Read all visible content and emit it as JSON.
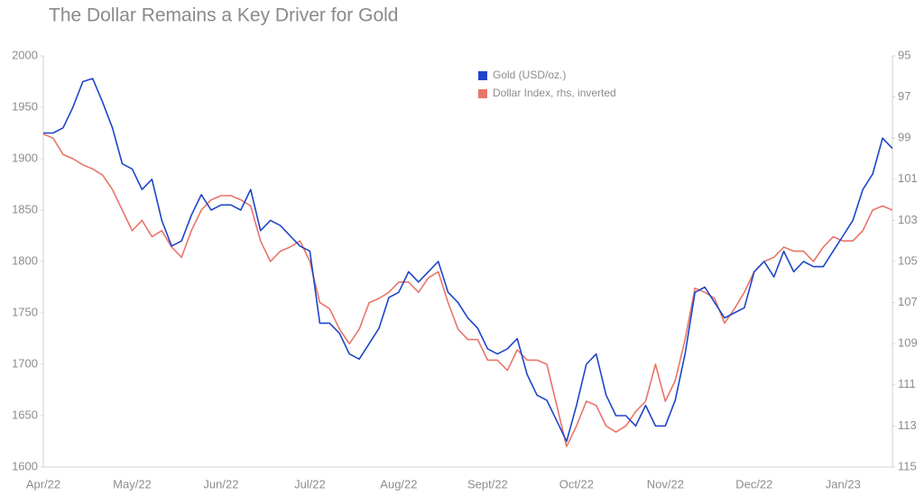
{
  "chart_data": {
    "type": "line",
    "title": "The Dollar Remains a Key Driver for Gold",
    "categories": [
      "Apr/22",
      null,
      null,
      null,
      null,
      null,
      null,
      null,
      null,
      "May/22",
      null,
      null,
      null,
      null,
      null,
      null,
      null,
      null,
      "Jun/22",
      null,
      null,
      null,
      null,
      null,
      null,
      null,
      null,
      "Jul/22",
      null,
      null,
      null,
      null,
      null,
      null,
      null,
      null,
      "Aug/22",
      null,
      null,
      null,
      null,
      null,
      null,
      null,
      null,
      "Sept/22",
      null,
      null,
      null,
      null,
      null,
      null,
      null,
      null,
      "Oct/22",
      null,
      null,
      null,
      null,
      null,
      null,
      null,
      null,
      "Nov/22",
      null,
      null,
      null,
      null,
      null,
      null,
      null,
      null,
      "Dec/22",
      null,
      null,
      null,
      null,
      null,
      null,
      null,
      null,
      "Jan/23",
      null,
      null,
      null,
      null,
      null
    ],
    "series": [
      {
        "name": "Gold (USD/oz.)",
        "color": "#1f45c8",
        "axis": "y",
        "values": [
          1925,
          1925,
          1930,
          1950,
          1975,
          1978,
          1955,
          1930,
          1895,
          1890,
          1870,
          1880,
          1840,
          1815,
          1820,
          1845,
          1865,
          1850,
          1855,
          1855,
          1850,
          1870,
          1830,
          1840,
          1835,
          1825,
          1815,
          1810,
          1740,
          1740,
          1730,
          1710,
          1705,
          1720,
          1735,
          1765,
          1770,
          1790,
          1780,
          1790,
          1800,
          1770,
          1760,
          1745,
          1735,
          1715,
          1710,
          1715,
          1725,
          1690,
          1670,
          1665,
          1645,
          1625,
          1660,
          1700,
          1710,
          1670,
          1650,
          1650,
          1640,
          1660,
          1640,
          1640,
          1665,
          1710,
          1770,
          1775,
          1760,
          1745,
          1750,
          1755,
          1790,
          1800,
          1785,
          1810,
          1790,
          1800,
          1795,
          1795,
          1810,
          1825,
          1840,
          1870,
          1885,
          1920,
          1910
        ]
      },
      {
        "name": "Dollar Index, rhs, inverted",
        "color": "#e8756a",
        "axis": "y2",
        "values": [
          98.8,
          99.0,
          99.8,
          100.0,
          100.3,
          100.5,
          100.8,
          101.5,
          102.5,
          103.5,
          103.0,
          103.8,
          103.5,
          104.3,
          104.8,
          103.5,
          102.5,
          102.0,
          101.8,
          101.8,
          102.0,
          102.3,
          104.0,
          105.0,
          104.5,
          104.3,
          104.0,
          105.0,
          107.0,
          107.3,
          108.3,
          109.0,
          108.3,
          107.0,
          106.8,
          106.5,
          106.0,
          106.0,
          106.5,
          105.8,
          105.5,
          107.0,
          108.3,
          108.8,
          108.8,
          109.8,
          109.8,
          110.3,
          109.3,
          109.8,
          109.8,
          110.0,
          112.0,
          114.0,
          113.0,
          111.8,
          112.0,
          113.0,
          113.3,
          113.0,
          112.3,
          111.8,
          110.0,
          111.8,
          110.8,
          108.8,
          106.3,
          106.5,
          106.8,
          108.0,
          107.3,
          106.5,
          105.5,
          105.0,
          104.8,
          104.3,
          104.5,
          104.5,
          105.0,
          104.3,
          103.8,
          104.0,
          104.0,
          103.5,
          102.5,
          102.3,
          102.5
        ]
      }
    ],
    "ylim": [
      1600,
      2000
    ],
    "yticks": [
      1600,
      1650,
      1700,
      1750,
      1800,
      1850,
      1900,
      1950,
      2000
    ],
    "y2lim": [
      115,
      95
    ],
    "y2ticks": [
      115,
      113,
      111,
      109,
      107,
      105,
      103,
      101,
      99,
      97,
      95
    ],
    "grid": false,
    "legend": "top"
  }
}
